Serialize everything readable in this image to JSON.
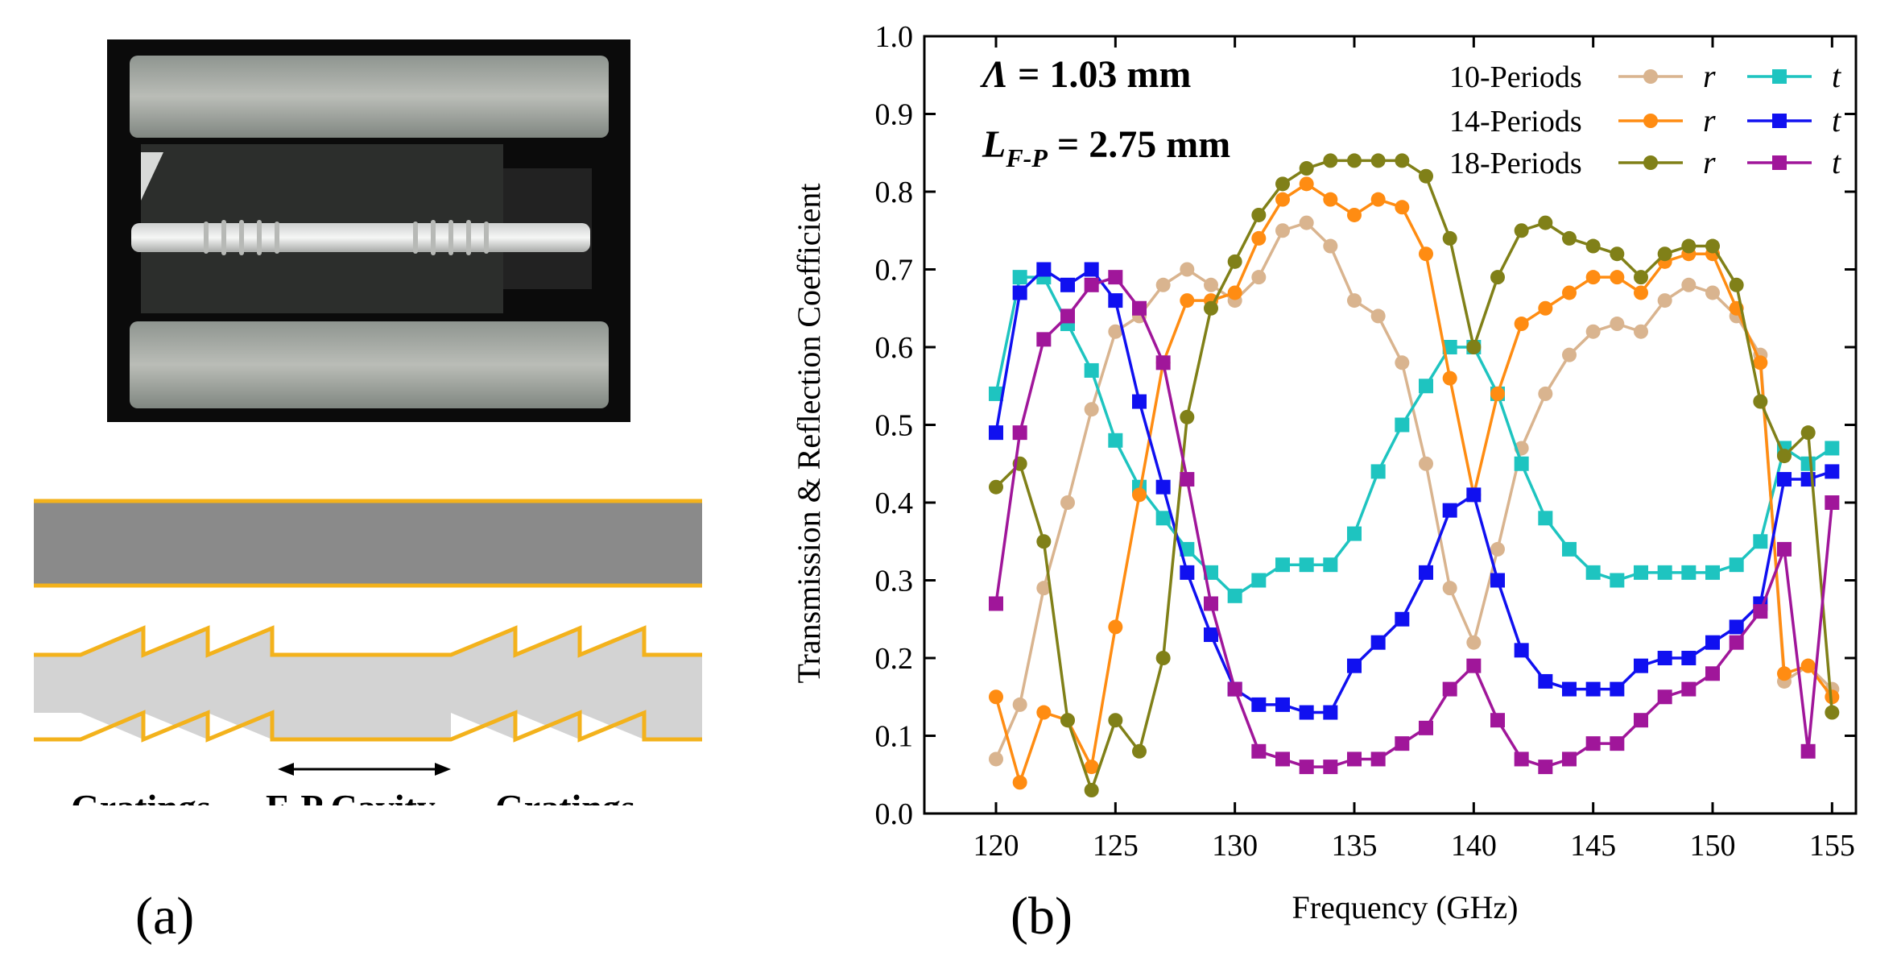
{
  "panel_a": {
    "caption": "(a)",
    "labels": [
      "Gratings",
      "F-P Cavity",
      "Gratings"
    ]
  },
  "panel_b": {
    "caption": "(b)",
    "annotation_lambda_symbol": "Λ",
    "annotation_lambda_value": " = 1.03 mm",
    "annotation_L_symbol": "L",
    "annotation_L_subscript": "F-P",
    "annotation_L_value": " = 2.75 mm"
  },
  "colors": {
    "r10": "#d9b48f",
    "t10": "#1ec4c0",
    "r14": "#ff8c12",
    "t14": "#1010f0",
    "r18": "#808018",
    "t18": "#a0169a",
    "orange_outline": "#f3b21c",
    "dark_gray": "#8a8a8a",
    "light_gray": "#d3d3d3"
  },
  "chart_data": {
    "type": "line",
    "title": "",
    "xlabel": "Frequency (GHz)",
    "ylabel": "Transmission & Reflection Coefficient",
    "xlim": [
      117,
      156
    ],
    "ylim": [
      0.0,
      1.0
    ],
    "xticks": [
      120,
      125,
      130,
      135,
      140,
      145,
      150,
      155
    ],
    "yticks": [
      "0.0",
      "0.1",
      "0.2",
      "0.3",
      "0.4",
      "0.5",
      "0.6",
      "0.7",
      "0.8",
      "0.9",
      "1.0"
    ],
    "x": [
      120,
      121,
      122,
      123,
      124,
      125,
      126,
      127,
      128,
      129,
      130,
      131,
      132,
      133,
      134,
      135,
      136,
      137,
      138,
      139,
      140,
      141,
      142,
      143,
      144,
      145,
      146,
      147,
      148,
      149,
      150,
      151,
      152,
      153,
      154,
      155
    ],
    "legend": [
      {
        "group": "10-Periods",
        "r": "r",
        "t": "t"
      },
      {
        "group": "14-Periods",
        "r": "r",
        "t": "t"
      },
      {
        "group": "18-Periods",
        "r": "r",
        "t": "t"
      }
    ],
    "series": [
      {
        "name": "10-Periods r",
        "marker": "circle",
        "values": [
          0.07,
          0.14,
          0.29,
          0.4,
          0.52,
          0.62,
          0.64,
          0.68,
          0.7,
          0.68,
          0.66,
          0.69,
          0.75,
          0.76,
          0.73,
          0.66,
          0.64,
          0.58,
          0.45,
          0.29,
          0.22,
          0.34,
          0.47,
          0.54,
          0.59,
          0.62,
          0.63,
          0.62,
          0.66,
          0.68,
          0.67,
          0.64,
          0.59,
          0.17,
          0.19,
          0.16
        ]
      },
      {
        "name": "10-Periods t",
        "marker": "square",
        "values": [
          0.54,
          0.69,
          0.69,
          0.63,
          0.57,
          0.48,
          0.42,
          0.38,
          0.34,
          0.31,
          0.28,
          0.3,
          0.32,
          0.32,
          0.32,
          0.36,
          0.44,
          0.5,
          0.55,
          0.6,
          0.6,
          0.54,
          0.45,
          0.38,
          0.34,
          0.31,
          0.3,
          0.31,
          0.31,
          0.31,
          0.31,
          0.32,
          0.35,
          0.47,
          0.45,
          0.47
        ]
      },
      {
        "name": "14-Periods r",
        "marker": "circle",
        "values": [
          0.15,
          0.04,
          0.13,
          0.12,
          0.06,
          0.24,
          0.41,
          0.58,
          0.66,
          0.66,
          0.67,
          0.74,
          0.79,
          0.81,
          0.79,
          0.77,
          0.79,
          0.78,
          0.72,
          0.56,
          0.41,
          0.54,
          0.63,
          0.65,
          0.67,
          0.69,
          0.69,
          0.67,
          0.71,
          0.72,
          0.72,
          0.65,
          0.58,
          0.18,
          0.19,
          0.15
        ]
      },
      {
        "name": "14-Periods t",
        "marker": "square",
        "values": [
          0.49,
          0.67,
          0.7,
          0.68,
          0.7,
          0.66,
          0.53,
          0.42,
          0.31,
          0.23,
          0.16,
          0.14,
          0.14,
          0.13,
          0.13,
          0.19,
          0.22,
          0.25,
          0.31,
          0.39,
          0.41,
          0.3,
          0.21,
          0.17,
          0.16,
          0.16,
          0.16,
          0.19,
          0.2,
          0.2,
          0.22,
          0.24,
          0.27,
          0.43,
          0.43,
          0.44
        ]
      },
      {
        "name": "18-Periods r",
        "marker": "circle",
        "values": [
          0.42,
          0.45,
          0.35,
          0.12,
          0.03,
          0.12,
          0.08,
          0.2,
          0.51,
          0.65,
          0.71,
          0.77,
          0.81,
          0.83,
          0.84,
          0.84,
          0.84,
          0.84,
          0.82,
          0.74,
          0.6,
          0.69,
          0.75,
          0.76,
          0.74,
          0.73,
          0.72,
          0.69,
          0.72,
          0.73,
          0.73,
          0.68,
          0.53,
          0.46,
          0.49,
          0.13
        ]
      },
      {
        "name": "18-Periods t",
        "marker": "square",
        "values": [
          0.27,
          0.49,
          0.61,
          0.64,
          0.68,
          0.69,
          0.65,
          0.58,
          0.43,
          0.27,
          0.16,
          0.08,
          0.07,
          0.06,
          0.06,
          0.07,
          0.07,
          0.09,
          0.11,
          0.16,
          0.19,
          0.12,
          0.07,
          0.06,
          0.07,
          0.09,
          0.09,
          0.12,
          0.15,
          0.16,
          0.18,
          0.22,
          0.26,
          0.34,
          0.08,
          0.4
        ]
      }
    ]
  }
}
